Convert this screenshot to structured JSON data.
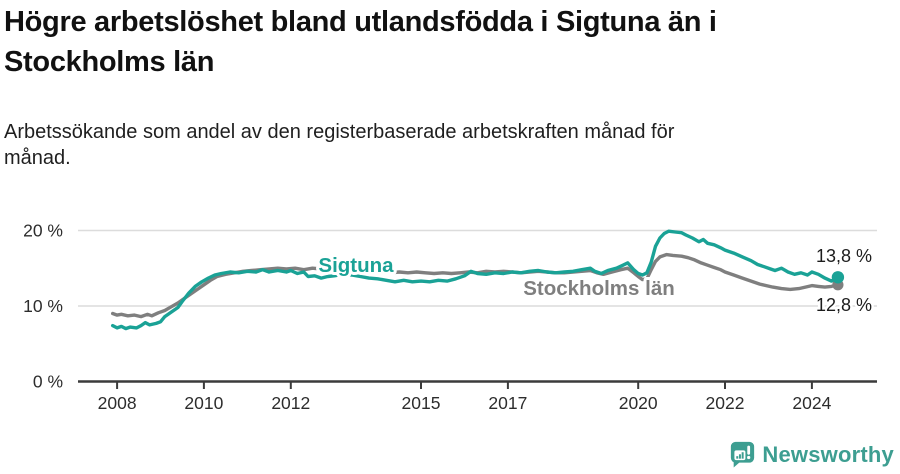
{
  "header": {
    "title_line1": "Högre arbetslöshet bland utlandsfödda i Sigtuna än i",
    "title_line2": "Stockholms län",
    "subtitle_line1": "Arbetssökande som andel av den registerbaserade arbetskraften månad för",
    "subtitle_line2": "månad."
  },
  "colors": {
    "sigtuna": "#1aa296",
    "stockholm": "#7f7f7f",
    "grid": "#dcdcdc",
    "axis": "#3b3b3b",
    "tick_text": "#2d2d2d",
    "value_label_text": "#1c1c1c",
    "logo": "#3d9e91",
    "title_text": "#111111"
  },
  "chart_data": {
    "type": "line",
    "title": "Högre arbetslöshet bland utlandsfödda i Sigtuna än i Stockholms län",
    "subtitle": "Arbetssökande som andel av den registerbaserade arbetskraften månad för månad.",
    "unit": "%",
    "grid": "horizontal",
    "legend_position": "inline-labels-on-lines",
    "xlim": [
      2007.1,
      2025.5
    ],
    "ylim": [
      0,
      22.05
    ],
    "x_tick_values": [
      2008,
      2010,
      2012,
      2015,
      2017,
      2020,
      2022,
      2024
    ],
    "x_tick_labels": [
      "2008",
      "2010",
      "2012",
      "2015",
      "2017",
      "2020",
      "2022",
      "2024"
    ],
    "y_tick_values": [
      0,
      10,
      20
    ],
    "y_tick_labels": [
      "0 %",
      "10 %",
      "20 %"
    ],
    "series": [
      {
        "name": "Sigtuna",
        "color": "#1aa296",
        "end_value": 13.8,
        "end_label": "13,8 %",
        "points": [
          [
            2007.9,
            7.4
          ],
          [
            2008.0,
            7.1
          ],
          [
            2008.1,
            7.3
          ],
          [
            2008.2,
            7.0
          ],
          [
            2008.3,
            7.2
          ],
          [
            2008.45,
            7.1
          ],
          [
            2008.55,
            7.4
          ],
          [
            2008.65,
            7.8
          ],
          [
            2008.75,
            7.5
          ],
          [
            2008.9,
            7.7
          ],
          [
            2009.0,
            7.9
          ],
          [
            2009.1,
            8.6
          ],
          [
            2009.25,
            9.2
          ],
          [
            2009.4,
            9.8
          ],
          [
            2009.5,
            10.6
          ],
          [
            2009.65,
            11.7
          ],
          [
            2009.8,
            12.6
          ],
          [
            2009.95,
            13.2
          ],
          [
            2010.1,
            13.7
          ],
          [
            2010.25,
            14.1
          ],
          [
            2010.4,
            14.3
          ],
          [
            2010.6,
            14.5
          ],
          [
            2010.8,
            14.4
          ],
          [
            2011.0,
            14.6
          ],
          [
            2011.2,
            14.5
          ],
          [
            2011.35,
            14.8
          ],
          [
            2011.5,
            14.5
          ],
          [
            2011.7,
            14.7
          ],
          [
            2011.9,
            14.5
          ],
          [
            2012.0,
            14.7
          ],
          [
            2012.15,
            14.3
          ],
          [
            2012.3,
            14.5
          ],
          [
            2012.4,
            13.9
          ],
          [
            2012.55,
            14.0
          ],
          [
            2012.7,
            13.7
          ],
          [
            2012.85,
            13.9
          ],
          [
            2013.0,
            14.0
          ],
          [
            2013.2,
            14.2
          ],
          [
            2013.4,
            14.1
          ],
          [
            2013.6,
            13.9
          ],
          [
            2013.8,
            13.7
          ],
          [
            2014.0,
            13.6
          ],
          [
            2014.2,
            13.4
          ],
          [
            2014.4,
            13.2
          ],
          [
            2014.6,
            13.4
          ],
          [
            2014.8,
            13.2
          ],
          [
            2015.0,
            13.3
          ],
          [
            2015.2,
            13.2
          ],
          [
            2015.4,
            13.4
          ],
          [
            2015.6,
            13.3
          ],
          [
            2015.8,
            13.6
          ],
          [
            2016.0,
            14.0
          ],
          [
            2016.15,
            14.6
          ],
          [
            2016.3,
            14.3
          ],
          [
            2016.5,
            14.2
          ],
          [
            2016.7,
            14.4
          ],
          [
            2016.9,
            14.3
          ],
          [
            2017.1,
            14.5
          ],
          [
            2017.3,
            14.4
          ],
          [
            2017.5,
            14.6
          ],
          [
            2017.7,
            14.7
          ],
          [
            2017.9,
            14.5
          ],
          [
            2018.1,
            14.4
          ],
          [
            2018.3,
            14.5
          ],
          [
            2018.5,
            14.6
          ],
          [
            2018.7,
            14.8
          ],
          [
            2018.9,
            15.0
          ],
          [
            2019.0,
            14.6
          ],
          [
            2019.15,
            14.3
          ],
          [
            2019.3,
            14.7
          ],
          [
            2019.5,
            15.0
          ],
          [
            2019.65,
            15.4
          ],
          [
            2019.76,
            15.7
          ],
          [
            2019.9,
            14.8
          ],
          [
            2020.0,
            14.3
          ],
          [
            2020.1,
            14.1
          ],
          [
            2020.2,
            14.4
          ],
          [
            2020.3,
            15.8
          ],
          [
            2020.4,
            17.9
          ],
          [
            2020.5,
            19.0
          ],
          [
            2020.6,
            19.6
          ],
          [
            2020.7,
            19.9
          ],
          [
            2020.85,
            19.8
          ],
          [
            2021.0,
            19.7
          ],
          [
            2021.1,
            19.4
          ],
          [
            2021.25,
            19.0
          ],
          [
            2021.4,
            18.5
          ],
          [
            2021.5,
            18.8
          ],
          [
            2021.6,
            18.3
          ],
          [
            2021.75,
            18.1
          ],
          [
            2021.9,
            17.7
          ],
          [
            2022.0,
            17.4
          ],
          [
            2022.2,
            17.0
          ],
          [
            2022.4,
            16.5
          ],
          [
            2022.6,
            16.0
          ],
          [
            2022.75,
            15.5
          ],
          [
            2022.9,
            15.2
          ],
          [
            2023.05,
            14.9
          ],
          [
            2023.15,
            14.7
          ],
          [
            2023.3,
            15.0
          ],
          [
            2023.45,
            14.5
          ],
          [
            2023.6,
            14.2
          ],
          [
            2023.75,
            14.4
          ],
          [
            2023.9,
            14.1
          ],
          [
            2024.0,
            14.5
          ],
          [
            2024.15,
            14.2
          ],
          [
            2024.3,
            13.7
          ],
          [
            2024.45,
            13.3
          ],
          [
            2024.6,
            13.8
          ]
        ]
      },
      {
        "name": "Stockholms län",
        "color": "#7f7f7f",
        "end_value": 12.8,
        "end_label": "12,8 %",
        "points": [
          [
            2007.9,
            9.0
          ],
          [
            2008.0,
            8.8
          ],
          [
            2008.1,
            8.9
          ],
          [
            2008.25,
            8.7
          ],
          [
            2008.4,
            8.8
          ],
          [
            2008.55,
            8.6
          ],
          [
            2008.7,
            8.9
          ],
          [
            2008.8,
            8.7
          ],
          [
            2008.95,
            9.1
          ],
          [
            2009.1,
            9.4
          ],
          [
            2009.25,
            9.9
          ],
          [
            2009.4,
            10.4
          ],
          [
            2009.55,
            11.0
          ],
          [
            2009.7,
            11.6
          ],
          [
            2009.85,
            12.2
          ],
          [
            2010.0,
            12.8
          ],
          [
            2010.15,
            13.4
          ],
          [
            2010.3,
            13.9
          ],
          [
            2010.5,
            14.2
          ],
          [
            2010.7,
            14.4
          ],
          [
            2010.9,
            14.6
          ],
          [
            2011.1,
            14.7
          ],
          [
            2011.3,
            14.8
          ],
          [
            2011.5,
            14.9
          ],
          [
            2011.7,
            15.0
          ],
          [
            2011.9,
            14.9
          ],
          [
            2012.1,
            15.0
          ],
          [
            2012.3,
            14.8
          ],
          [
            2012.5,
            15.0
          ],
          [
            2012.7,
            14.9
          ],
          [
            2012.9,
            15.0
          ],
          [
            2013.1,
            14.9
          ],
          [
            2013.3,
            15.0
          ],
          [
            2013.5,
            14.8
          ],
          [
            2013.7,
            14.7
          ],
          [
            2013.9,
            14.6
          ],
          [
            2014.1,
            14.5
          ],
          [
            2014.3,
            14.4
          ],
          [
            2014.5,
            14.5
          ],
          [
            2014.7,
            14.4
          ],
          [
            2014.9,
            14.5
          ],
          [
            2015.1,
            14.4
          ],
          [
            2015.3,
            14.3
          ],
          [
            2015.5,
            14.4
          ],
          [
            2015.7,
            14.3
          ],
          [
            2015.9,
            14.4
          ],
          [
            2016.1,
            14.5
          ],
          [
            2016.3,
            14.4
          ],
          [
            2016.5,
            14.6
          ],
          [
            2016.7,
            14.5
          ],
          [
            2016.9,
            14.6
          ],
          [
            2017.1,
            14.5
          ],
          [
            2017.3,
            14.4
          ],
          [
            2017.5,
            14.5
          ],
          [
            2017.7,
            14.6
          ],
          [
            2017.9,
            14.5
          ],
          [
            2018.1,
            14.4
          ],
          [
            2018.3,
            14.4
          ],
          [
            2018.5,
            14.5
          ],
          [
            2018.7,
            14.6
          ],
          [
            2018.9,
            14.7
          ],
          [
            2019.05,
            14.4
          ],
          [
            2019.2,
            14.2
          ],
          [
            2019.4,
            14.5
          ],
          [
            2019.6,
            14.8
          ],
          [
            2019.76,
            15.0
          ],
          [
            2019.9,
            14.4
          ],
          [
            2020.0,
            13.9
          ],
          [
            2020.1,
            13.5
          ],
          [
            2020.2,
            13.6
          ],
          [
            2020.3,
            14.8
          ],
          [
            2020.4,
            15.9
          ],
          [
            2020.5,
            16.5
          ],
          [
            2020.65,
            16.8
          ],
          [
            2020.8,
            16.7
          ],
          [
            2021.0,
            16.6
          ],
          [
            2021.15,
            16.4
          ],
          [
            2021.3,
            16.1
          ],
          [
            2021.45,
            15.7
          ],
          [
            2021.6,
            15.4
          ],
          [
            2021.75,
            15.1
          ],
          [
            2021.9,
            14.8
          ],
          [
            2022.0,
            14.5
          ],
          [
            2022.2,
            14.1
          ],
          [
            2022.4,
            13.7
          ],
          [
            2022.6,
            13.3
          ],
          [
            2022.8,
            12.9
          ],
          [
            2022.95,
            12.7
          ],
          [
            2023.1,
            12.5
          ],
          [
            2023.3,
            12.3
          ],
          [
            2023.5,
            12.2
          ],
          [
            2023.7,
            12.3
          ],
          [
            2023.85,
            12.5
          ],
          [
            2024.0,
            12.7
          ],
          [
            2024.15,
            12.6
          ],
          [
            2024.3,
            12.5
          ],
          [
            2024.45,
            12.6
          ],
          [
            2024.6,
            12.8
          ]
        ]
      }
    ]
  },
  "branding": {
    "logo_text": "Newsworthy"
  }
}
